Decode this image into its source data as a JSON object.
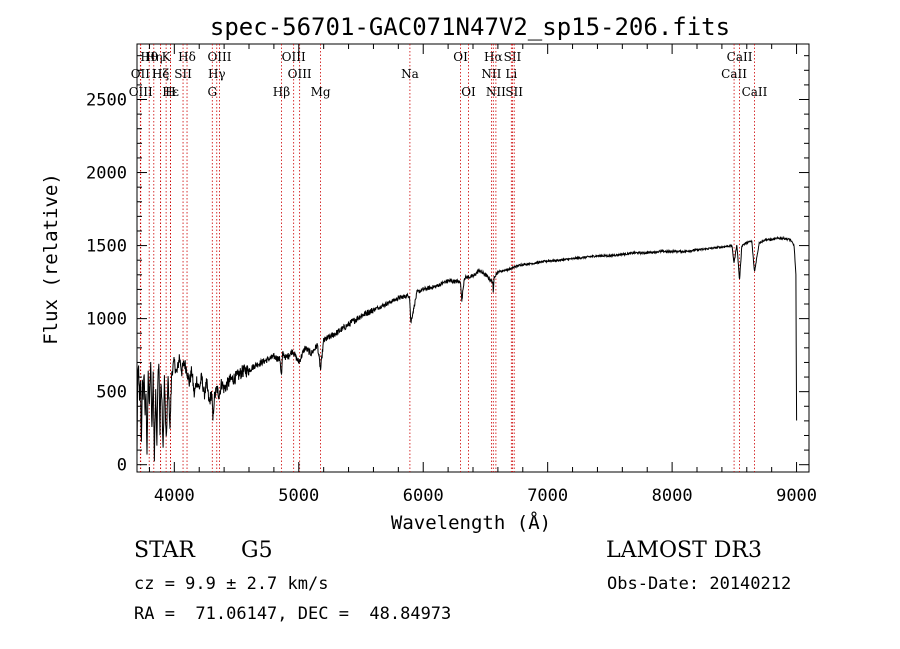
{
  "chart_data": {
    "type": "line",
    "title": "spec-56701-GAC071N47V2_sp15-206.fits",
    "xlabel": "Wavelength (Å)",
    "ylabel": "Flux (relative)",
    "xlim": [
      3700,
      9100
    ],
    "ylim": [
      -50,
      2880
    ],
    "xticks": [
      4000,
      5000,
      6000,
      7000,
      8000,
      9000
    ],
    "yticks": [
      0,
      500,
      1000,
      1500,
      2000,
      2500
    ],
    "grid": false,
    "colors": {
      "spectrum": "#000000",
      "lines": "#cc0000"
    },
    "series": [
      {
        "name": "flux",
        "x": [
          3700,
          3705,
          3712,
          3720,
          3728,
          3735,
          3742,
          3750,
          3758,
          3765,
          3772,
          3780,
          3790,
          3800,
          3810,
          3820,
          3830,
          3840,
          3850,
          3860,
          3868,
          3876,
          3884,
          3892,
          3900,
          3910,
          3920,
          3935,
          3950,
          3965,
          3980,
          4000,
          4020,
          4040,
          4060,
          4080,
          4100,
          4120,
          4140,
          4160,
          4180,
          4200,
          4220,
          4240,
          4260,
          4280,
          4300,
          4310,
          4320,
          4340,
          4360,
          4380,
          4400,
          4450,
          4500,
          4550,
          4600,
          4650,
          4700,
          4750,
          4800,
          4850,
          4861,
          4870,
          4900,
          4950,
          5000,
          5050,
          5100,
          5150,
          5175,
          5200,
          5300,
          5400,
          5500,
          5600,
          5700,
          5800,
          5890,
          5900,
          5950,
          6000,
          6100,
          6200,
          6300,
          6310,
          6330,
          6400,
          6450,
          6500,
          6560,
          6563,
          6570,
          6600,
          6650,
          6700,
          6750,
          6800,
          6900,
          7000,
          7100,
          7200,
          7300,
          7400,
          7500,
          7600,
          7700,
          7800,
          7900,
          8000,
          8100,
          8200,
          8300,
          8400,
          8480,
          8498,
          8520,
          8542,
          8560,
          8600,
          8640,
          8662,
          8700,
          8750,
          8800,
          8850,
          8900,
          8950,
          8980,
          8995,
          9000
        ],
        "y": [
          50,
          550,
          680,
          420,
          600,
          150,
          560,
          480,
          640,
          300,
          520,
          100,
          600,
          420,
          700,
          250,
          620,
          30,
          540,
          150,
          600,
          700,
          200,
          560,
          450,
          80,
          600,
          150,
          600,
          250,
          640,
          700,
          620,
          740,
          640,
          700,
          650,
          560,
          640,
          480,
          580,
          520,
          600,
          480,
          560,
          420,
          500,
          300,
          450,
          520,
          480,
          560,
          520,
          580,
          600,
          640,
          650,
          680,
          700,
          720,
          740,
          720,
          600,
          760,
          730,
          780,
          700,
          800,
          760,
          820,
          650,
          850,
          900,
          960,
          1020,
          1060,
          1100,
          1140,
          1160,
          970,
          1180,
          1200,
          1220,
          1260,
          1250,
          1120,
          1280,
          1290,
          1330,
          1300,
          1250,
          1150,
          1290,
          1320,
          1330,
          1340,
          1360,
          1370,
          1380,
          1395,
          1400,
          1410,
          1420,
          1430,
          1430,
          1440,
          1450,
          1450,
          1460,
          1460,
          1460,
          1470,
          1480,
          1490,
          1500,
          1380,
          1510,
          1260,
          1500,
          1520,
          1530,
          1320,
          1520,
          1540,
          1540,
          1550,
          1550,
          1540,
          1500,
          1300,
          300
        ]
      }
    ],
    "lines": [
      {
        "name": "Hθ",
        "wave": 3798,
        "row": 0
      },
      {
        "name": "OII",
        "wave": 3727,
        "row": 1
      },
      {
        "name": "OIII",
        "wave": 3730,
        "row": 2
      },
      {
        "name": "Hη",
        "wave": 3835,
        "row": 0
      },
      {
        "name": "Hζ",
        "wave": 3889,
        "row": 1
      },
      {
        "name": "K",
        "wave": 3934,
        "row": 0
      },
      {
        "name": "He",
        "wave": 3890,
        "row": 1
      },
      {
        "name": "Hε",
        "wave": 3970,
        "row": 2
      },
      {
        "name": "SII",
        "wave": 4070,
        "row": 1
      },
      {
        "name": "H",
        "wave": 3969,
        "row": 2
      },
      {
        "name": "Hδ",
        "wave": 4102,
        "row": 0
      },
      {
        "name": "OIII",
        "wave": 4363,
        "row": 0
      },
      {
        "name": "Hγ",
        "wave": 4341,
        "row": 1
      },
      {
        "name": "G",
        "wave": 4305,
        "row": 2
      },
      {
        "name": "Hβ",
        "wave": 4861,
        "row": 2
      },
      {
        "name": "OIII",
        "wave": 4959,
        "row": 0
      },
      {
        "name": "OIII",
        "wave": 5007,
        "row": 1
      },
      {
        "name": "Mg",
        "wave": 5175,
        "row": 2
      },
      {
        "name": "Na",
        "wave": 5893,
        "row": 1
      },
      {
        "name": "OI",
        "wave": 6300,
        "row": 0
      },
      {
        "name": "OI",
        "wave": 6364,
        "row": 2
      },
      {
        "name": "Hα",
        "wave": 6563,
        "row": 0
      },
      {
        "name": "SII",
        "wave": 6717,
        "row": 0
      },
      {
        "name": "NII",
        "wave": 6548,
        "row": 1
      },
      {
        "name": "Li",
        "wave": 6708,
        "row": 1
      },
      {
        "name": "NII",
        "wave": 6584,
        "row": 2
      },
      {
        "name": "SII",
        "wave": 6731,
        "row": 2
      },
      {
        "name": "CaII",
        "wave": 8542,
        "row": 0
      },
      {
        "name": "CaII",
        "wave": 8498,
        "row": 1
      },
      {
        "name": "CaII",
        "wave": 8662,
        "row": 2
      }
    ]
  },
  "info": {
    "class": "STAR",
    "subclass": "G5",
    "survey": "LAMOST DR3",
    "cz": "cz = 9.9 ± 2.7 km/s",
    "obs_date": "Obs-Date: 20140212",
    "radec": "RA =  71.06147, DEC =  48.84973"
  }
}
